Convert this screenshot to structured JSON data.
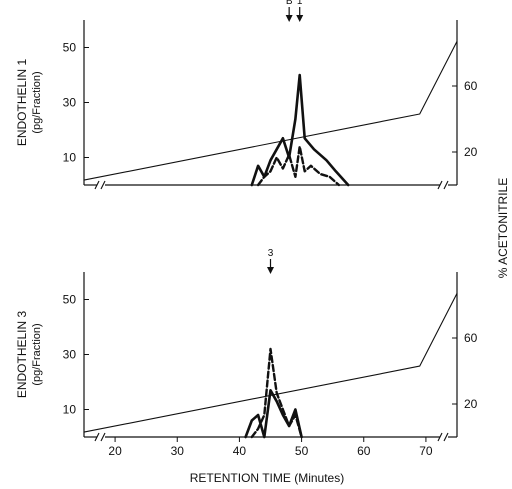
{
  "chart_data": [
    {
      "id": "top",
      "type": "line",
      "ylabel": "ENDOTHELIN 1",
      "ylabel_unit": "(pg/Fraction)",
      "y2label": "% ACETONITRILE",
      "xlabel": "",
      "xlim": [
        15,
        75
      ],
      "ylim": [
        0,
        60
      ],
      "y2lim": [
        0,
        100
      ],
      "yticks": [
        10,
        30,
        50
      ],
      "y2ticks": [
        20,
        60
      ],
      "markers": [
        {
          "label": "B",
          "x": 48
        },
        {
          "label": "1",
          "x": 49.7
        }
      ],
      "series": [
        {
          "style": "solid",
          "role": "gradient",
          "x": [
            15,
            69,
            75
          ],
          "y": [
            3,
            43,
            87
          ]
        },
        {
          "style": "bold-solid",
          "x": [
            42,
            43,
            44,
            45,
            46,
            47,
            48,
            49,
            49.7,
            50.5,
            52,
            54,
            55.5,
            57.5
          ],
          "y": [
            0,
            7,
            3,
            9,
            13,
            17,
            10,
            24,
            40,
            17,
            13,
            9,
            5,
            0
          ]
        },
        {
          "style": "bold-dashed",
          "x": [
            43,
            44,
            45,
            46,
            47,
            48,
            49,
            49.7,
            50.5,
            51.5,
            53,
            54.5,
            56
          ],
          "y": [
            0,
            3,
            5,
            10,
            6,
            11,
            3,
            14,
            5,
            7,
            4,
            3,
            0
          ]
        }
      ]
    },
    {
      "id": "bottom",
      "type": "line",
      "ylabel": "ENDOTHELIN 3",
      "ylabel_unit": "(pg/Fraction)",
      "y2label": "% ACETONITRILE",
      "xlabel": "RETENTION TIME (Minutes)",
      "xlim": [
        15,
        75
      ],
      "ylim": [
        0,
        60
      ],
      "y2lim": [
        0,
        100
      ],
      "yticks": [
        10,
        30,
        50
      ],
      "y2ticks": [
        20,
        60
      ],
      "xticks": [
        20,
        30,
        40,
        50,
        60,
        70
      ],
      "markers": [
        {
          "label": "3",
          "x": 45
        }
      ],
      "series": [
        {
          "style": "solid",
          "role": "gradient",
          "x": [
            15,
            69,
            75
          ],
          "y": [
            3,
            43,
            87
          ]
        },
        {
          "style": "bold-solid",
          "x": [
            41,
            42,
            43,
            44,
            45,
            46,
            47,
            48,
            49,
            50
          ],
          "y": [
            0,
            6,
            8,
            0,
            17,
            13,
            8,
            4,
            10,
            0
          ]
        },
        {
          "style": "bold-dashed",
          "x": [
            42,
            43,
            44,
            45,
            46,
            47,
            48,
            49,
            50
          ],
          "y": [
            0,
            3,
            8,
            32,
            16,
            10,
            4,
            8,
            0
          ]
        }
      ]
    }
  ]
}
